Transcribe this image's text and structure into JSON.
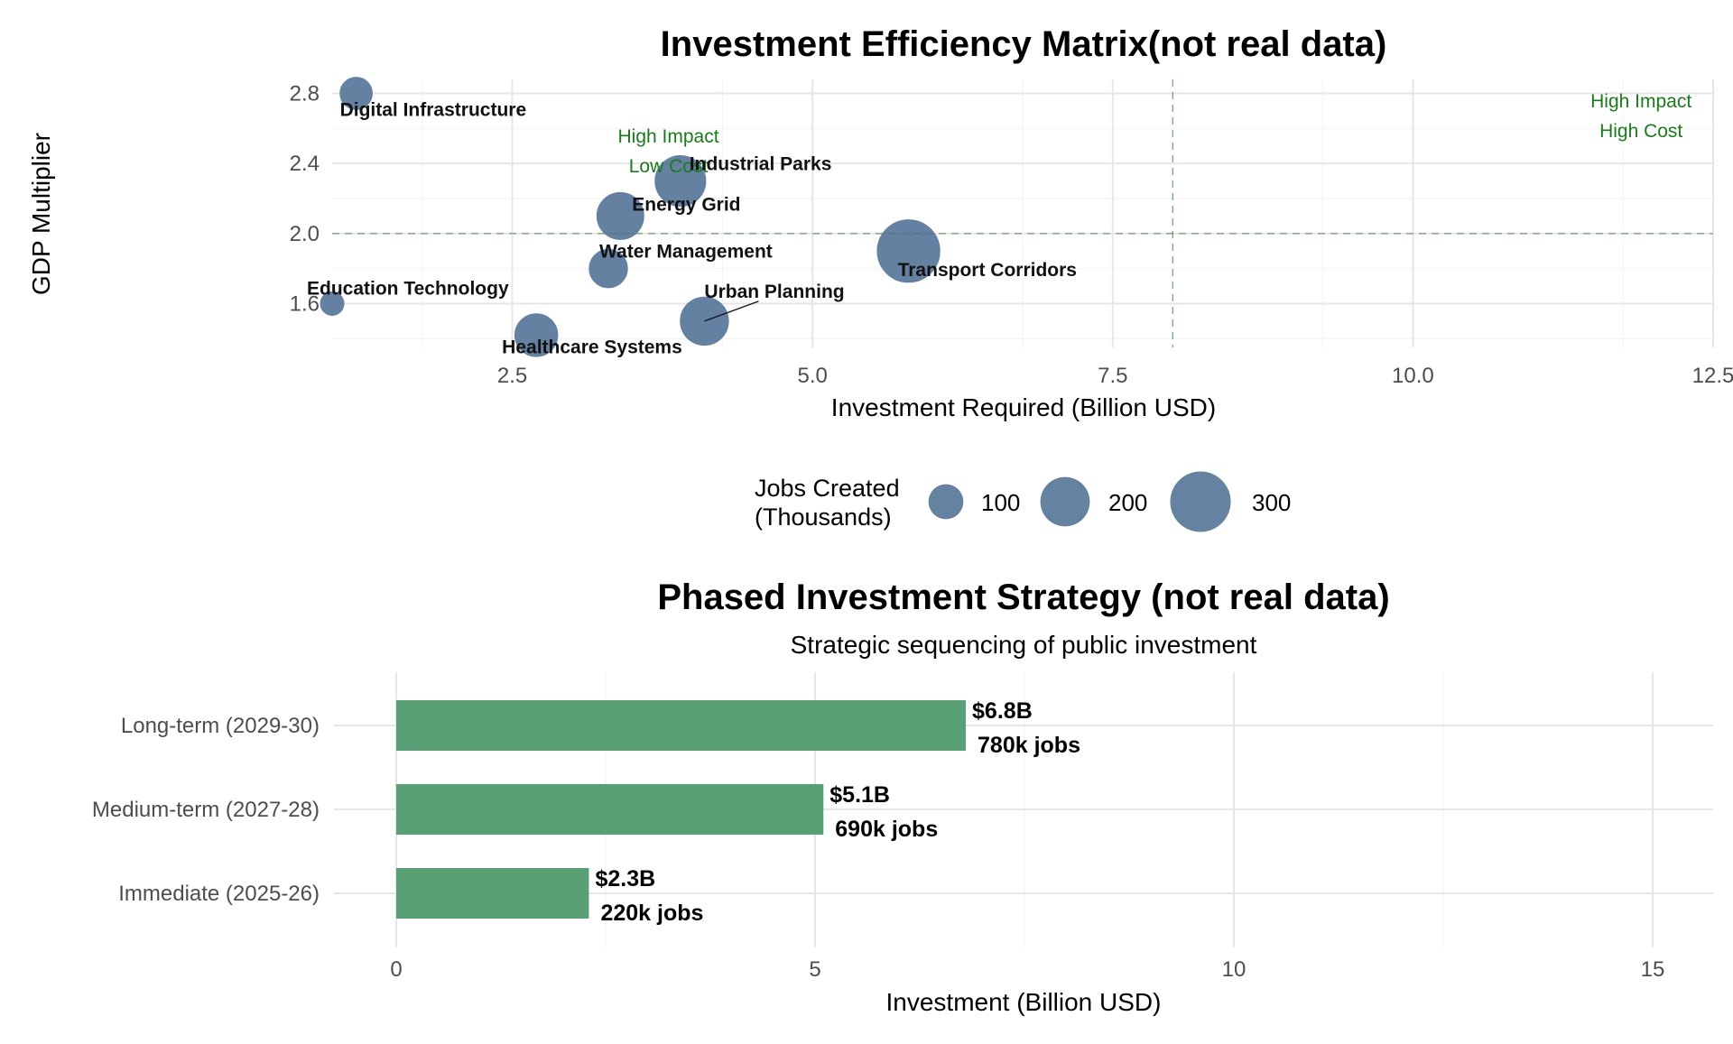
{
  "chart_data": [
    {
      "type": "scatter",
      "title": "Investment Efficiency Matrix(not real data)",
      "xlabel": "Investment Required (Billion USD)",
      "ylabel": "GDP Multiplier",
      "xlim": [
        1.0,
        12.5
      ],
      "ylim": [
        1.35,
        2.88
      ],
      "xticks": [
        2.5,
        5.0,
        7.5,
        10.0,
        12.5
      ],
      "xtick_labels": [
        "2.5",
        "5.0",
        "7.5",
        "10.0",
        "12.5"
      ],
      "yticks": [
        1.6,
        2.0,
        2.4,
        2.8
      ],
      "ytick_labels": [
        "1.6",
        "2.0",
        "2.4",
        "2.8"
      ],
      "grid": true,
      "point_color": "#4a6c91",
      "reference_color": "#2e7d32",
      "reference_lines": {
        "x": 8.0,
        "y": 2.0
      },
      "quadrant_labels": [
        {
          "line1": "High Impact",
          "line2": "Low Cost",
          "x": 3.8,
          "y": 2.52
        },
        {
          "line1": "High Impact",
          "line2": "High Cost",
          "x": 11.9,
          "y": 2.72
        }
      ],
      "points": [
        {
          "name": "Digital Infrastructure",
          "x": 1.2,
          "y": 2.8,
          "jobs": 85
        },
        {
          "name": "Industrial Parks",
          "x": 3.9,
          "y": 2.3,
          "jobs": 210
        },
        {
          "name": "Energy Grid",
          "x": 3.4,
          "y": 2.1,
          "jobs": 180
        },
        {
          "name": "Water Management",
          "x": 3.3,
          "y": 1.8,
          "jobs": 120
        },
        {
          "name": "Transport Corridors",
          "x": 5.8,
          "y": 1.9,
          "jobs": 320
        },
        {
          "name": "Education Technology",
          "x": 1.0,
          "y": 1.6,
          "jobs": 45
        },
        {
          "name": "Urban Planning",
          "x": 4.1,
          "y": 1.5,
          "jobs": 190
        },
        {
          "name": "Healthcare Systems",
          "x": 2.7,
          "y": 1.42,
          "jobs": 150
        }
      ],
      "legend": {
        "title_line1": "Jobs Created",
        "title_line2": "(Thousands)",
        "position": "bottom",
        "items": [
          {
            "label": "100",
            "jobs": 100
          },
          {
            "label": "200",
            "jobs": 200
          },
          {
            "label": "300",
            "jobs": 300
          }
        ]
      }
    },
    {
      "type": "bar",
      "orientation": "horizontal",
      "title": "Phased Investment Strategy (not real data)",
      "subtitle": "Strategic sequencing of public investment",
      "xlabel": "Investment (Billion USD)",
      "xlim": [
        0,
        15.7
      ],
      "xticks": [
        0,
        5,
        10,
        15
      ],
      "xtick_labels": [
        "0",
        "5",
        "10",
        "15"
      ],
      "grid": true,
      "bar_color": "#4f9a6e",
      "categories": [
        "Long-term (2029-30)",
        "Medium-term (2027-28)",
        "Immediate (2025-26)"
      ],
      "values": [
        6.8,
        5.1,
        2.3
      ],
      "jobs_thousands": [
        780,
        690,
        220
      ],
      "value_labels": [
        "$6.8B",
        "$5.1B",
        "$2.3B"
      ],
      "jobs_labels": [
        "780k jobs",
        "690k jobs",
        "220k jobs"
      ]
    }
  ]
}
